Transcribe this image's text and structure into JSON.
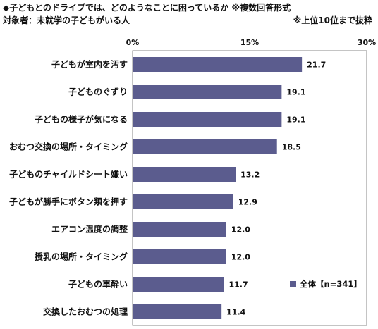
{
  "header": {
    "title": "◆子どもとのドライブでは、どのようなことに困っているか ※複数回答形式",
    "subject": "対象者：未就学の子どもがいる人",
    "note": "※上位10位まで抜粋"
  },
  "colors": {
    "bar": "#5b5c8e",
    "axis": "#888888"
  },
  "chart_data": {
    "type": "bar",
    "orientation": "horizontal",
    "categories": [
      "子どもが室内を汚す",
      "子どものぐずり",
      "子どもの様子が気になる",
      "おむつ交換の場所・タイミング",
      "子どものチャイルドシート嫌い",
      "子どもが勝手にボタン類を押す",
      "エアコン温度の調整",
      "授乳の場所・タイミング",
      "子どもの車酔い",
      "交換したおむつの処理"
    ],
    "series": [
      {
        "name": "全体【n=341】",
        "values": [
          21.7,
          19.1,
          19.1,
          18.5,
          13.2,
          12.9,
          12.0,
          12.0,
          11.7,
          11.4
        ],
        "labels": [
          "21.7",
          "19.1",
          "19.1",
          "18.5",
          "13.2",
          "12.9",
          "12.0",
          "12.0",
          "11.7",
          "11.4"
        ]
      }
    ],
    "xlim": [
      0,
      30
    ],
    "ticks": [
      "0%",
      "15%",
      "30%"
    ],
    "tick_values": [
      0,
      15,
      30
    ],
    "legend_position": "bottom-right"
  }
}
